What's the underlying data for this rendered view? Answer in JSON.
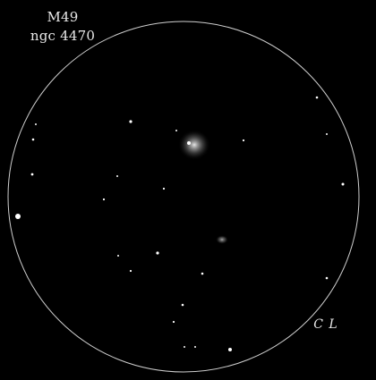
{
  "drawing": {
    "object_name": "M49",
    "catalog_id": "ngc 4470",
    "signature": "C L",
    "field_of_view": "circular eyepiece field",
    "colors": {
      "background": "#000000",
      "field_circle": "#cfcfcf",
      "stars": "#ffffff",
      "text": "#e8e8e8"
    }
  }
}
